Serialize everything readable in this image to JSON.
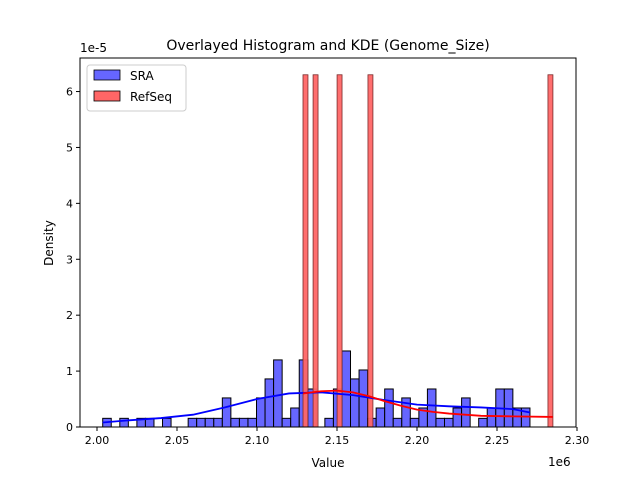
{
  "chart_data": {
    "type": "bar",
    "title": "Overlayed Histogram and KDE (Genome_Size)",
    "xlabel": "Value",
    "ylabel": "Density",
    "x_offset_label": "1e6",
    "y_offset_label": "1e-5",
    "xlim": [
      1.98937,
      2.29938
    ],
    "ylim": [
      0,
      6.6
    ],
    "xticks": [
      2.0,
      2.05,
      2.1,
      2.15,
      2.2,
      2.25,
      2.3
    ],
    "xtick_labels": [
      "2.00",
      "2.05",
      "2.10",
      "2.15",
      "2.20",
      "2.25",
      "2.30"
    ],
    "yticks": [
      0,
      1,
      2,
      3,
      4,
      5,
      6
    ],
    "ytick_labels": [
      "0",
      "1",
      "2",
      "3",
      "4",
      "5",
      "6"
    ],
    "grid": false,
    "legend_position": "top-left",
    "series": [
      {
        "name": "SRA",
        "color": "#0000ff",
        "fill": "#6666ff",
        "bin_start": 2.00356,
        "bin_end": 2.2706,
        "densities": [
          0.155,
          0,
          0.155,
          0,
          0.155,
          0.155,
          0,
          0.155,
          0,
          0,
          0.155,
          0.155,
          0.155,
          0.155,
          0.52,
          0.155,
          0.155,
          0.155,
          0.52,
          0.86,
          1.2,
          0.155,
          0.34,
          1.2,
          0.68,
          0,
          0.155,
          0.68,
          1.36,
          0.86,
          1.02,
          0.155,
          0.34,
          0.68,
          0.155,
          0.52,
          0.155,
          0.34,
          0.68,
          0.155,
          0.155,
          0.34,
          0.52,
          0,
          0.155,
          0.34,
          0.68,
          0.68,
          0.34,
          0.34
        ],
        "kde": {
          "x": [
            2.0035,
            2.02,
            2.04,
            2.06,
            2.08,
            2.1,
            2.12,
            2.14,
            2.16,
            2.18,
            2.2,
            2.22,
            2.24,
            2.26,
            2.2706
          ],
          "y": [
            0.08,
            0.12,
            0.16,
            0.22,
            0.35,
            0.5,
            0.6,
            0.62,
            0.57,
            0.48,
            0.4,
            0.37,
            0.35,
            0.32,
            0.26
          ]
        }
      },
      {
        "name": "RefSeq",
        "color": "#ff0000",
        "fill": "#ff6666",
        "bars": [
          {
            "x": 2.1303,
            "density": 6.3
          },
          {
            "x": 2.1366,
            "density": 6.3
          },
          {
            "x": 2.1516,
            "density": 6.3
          },
          {
            "x": 2.1709,
            "density": 6.3
          },
          {
            "x": 2.2834,
            "density": 6.3
          }
        ],
        "bar_width": 0.0031,
        "kde": {
          "x": [
            2.1288,
            2.14,
            2.15,
            2.16,
            2.17,
            2.18,
            2.19,
            2.2,
            2.21,
            2.22,
            2.24,
            2.26,
            2.2849
          ],
          "y": [
            0.6,
            0.64,
            0.65,
            0.62,
            0.55,
            0.46,
            0.38,
            0.31,
            0.27,
            0.24,
            0.2,
            0.19,
            0.18
          ]
        }
      }
    ]
  }
}
